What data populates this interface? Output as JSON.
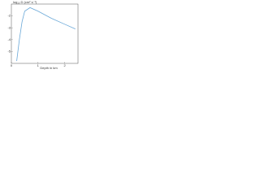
{
  "chart_data": {
    "type": "line",
    "y_label": "log₁₀ D (cm² s⁻¹)",
    "x_label": "Depth in km",
    "x": [
      0.2,
      0.3,
      0.4,
      0.5,
      0.7,
      1,
      1.5,
      2,
      2.4
    ],
    "series": [
      {
        "name": "D",
        "color": "#6aa8d8",
        "values": [
          -5.8,
          -4,
          -2.5,
          -1.6,
          -1.3,
          -1.6,
          -2.2,
          -2.7,
          -3.1
        ]
      }
    ],
    "xlim": [
      0,
      2.5
    ],
    "xticks": [
      0,
      1,
      2
    ],
    "ylim": [
      -6,
      -1
    ],
    "yticks": [
      -2,
      -3,
      -4,
      -5
    ]
  }
}
